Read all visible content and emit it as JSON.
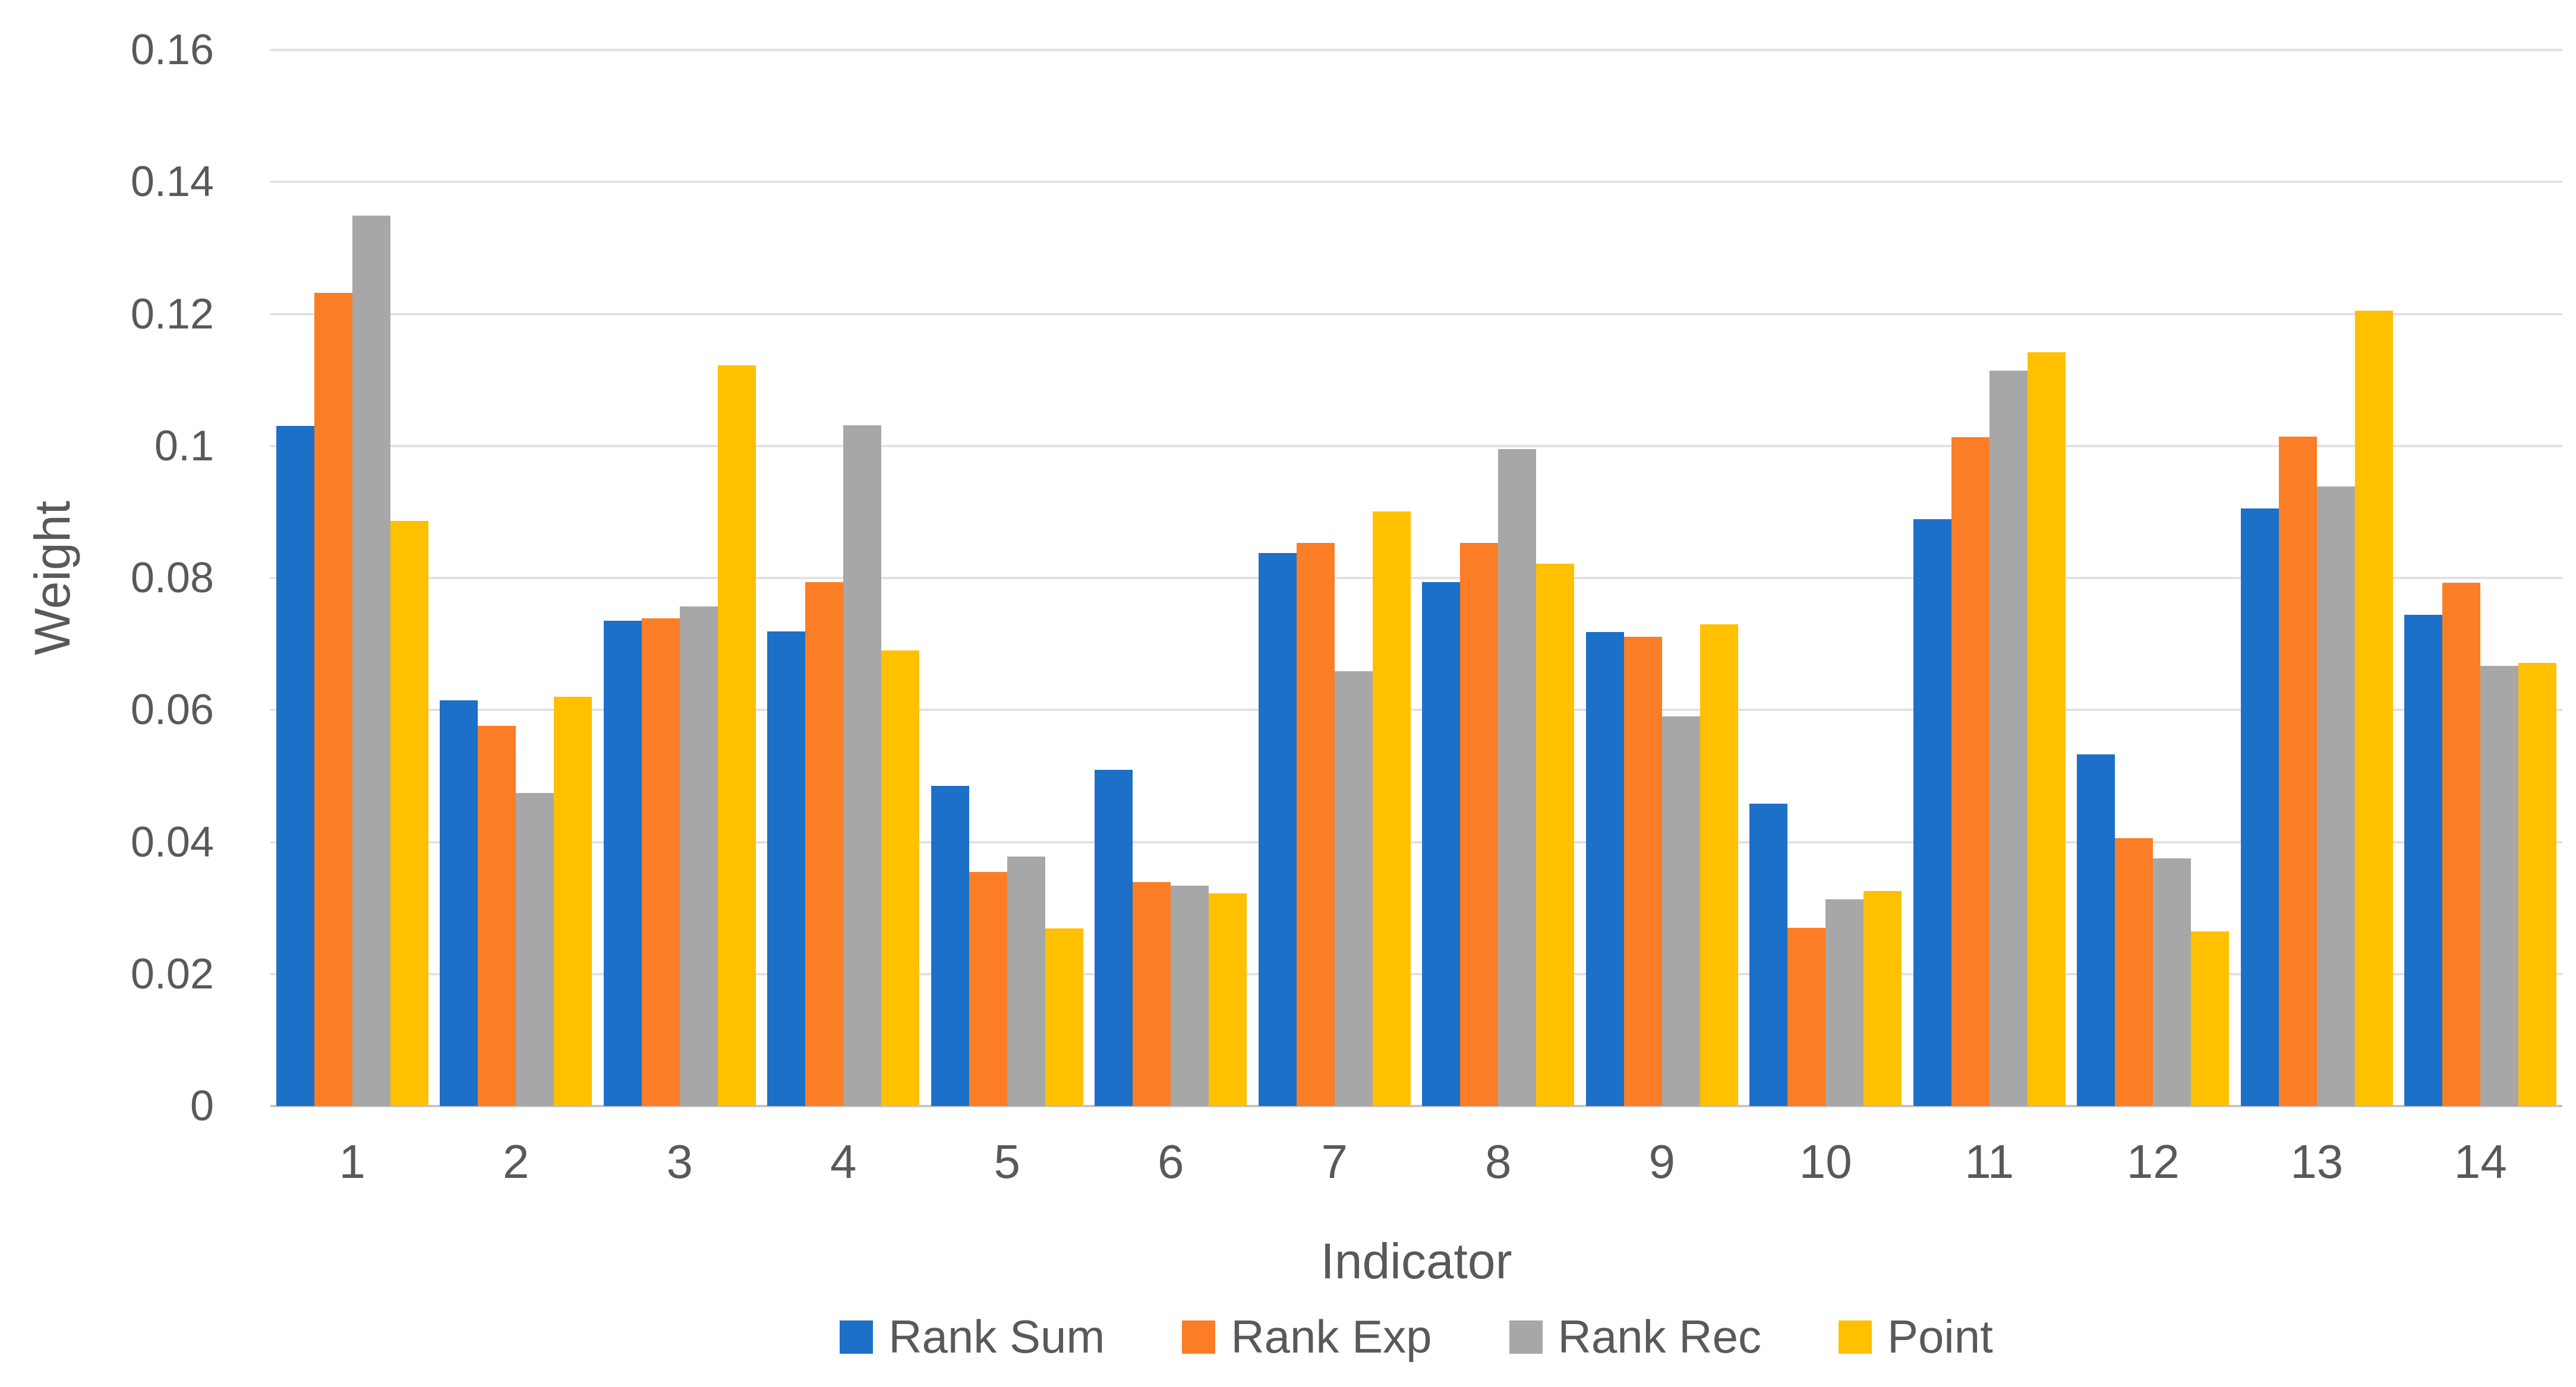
{
  "chart_data": {
    "type": "bar",
    "title": "",
    "xlabel": "Indicator",
    "ylabel": "Weight",
    "categories": [
      "1",
      "2",
      "3",
      "4",
      "5",
      "6",
      "7",
      "8",
      "9",
      "10",
      "11",
      "12",
      "13",
      "14"
    ],
    "series": [
      {
        "name": "Rank Sum",
        "color": "#1C70C8",
        "values": [
          0.103,
          0.0615,
          0.0735,
          0.0719,
          0.0485,
          0.0509,
          0.0838,
          0.0794,
          0.0718,
          0.0458,
          0.0889,
          0.0533,
          0.0905,
          0.0744
        ]
      },
      {
        "name": "Rank Exp",
        "color": "#FB7D26",
        "values": [
          0.1232,
          0.0576,
          0.0739,
          0.0794,
          0.0355,
          0.0339,
          0.0853,
          0.0853,
          0.0711,
          0.027,
          0.1013,
          0.0406,
          0.1014,
          0.0793
        ]
      },
      {
        "name": "Rank Rec",
        "color": "#A7A7A7",
        "values": [
          0.1349,
          0.0474,
          0.0757,
          0.1031,
          0.0378,
          0.0334,
          0.0659,
          0.0995,
          0.059,
          0.0313,
          0.1114,
          0.0375,
          0.0939,
          0.0667
        ]
      },
      {
        "name": "Point",
        "color": "#FFC000",
        "values": [
          0.0886,
          0.062,
          0.1122,
          0.069,
          0.0269,
          0.0322,
          0.0901,
          0.0822,
          0.073,
          0.0326,
          0.1142,
          0.0265,
          0.1205,
          0.0671
        ]
      }
    ],
    "ylim": [
      0,
      0.16
    ],
    "ytick_step": 0.02,
    "ytick_labels": [
      "0",
      "0.02",
      "0.04",
      "0.06",
      "0.08",
      "0.1",
      "0.12",
      "0.14",
      "0.16"
    ],
    "grid": "horizontal",
    "legend_position": "bottom"
  },
  "colors": {
    "background": "#FFFFFF",
    "gridline": "#E2E2E2",
    "axis_line": "#C6C6C6",
    "text": "#595959"
  }
}
